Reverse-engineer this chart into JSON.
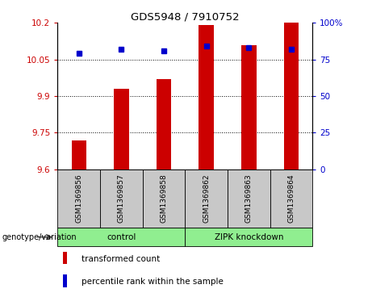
{
  "title": "GDS5948 / 7910752",
  "samples": [
    "GSM1369856",
    "GSM1369857",
    "GSM1369858",
    "GSM1369862",
    "GSM1369863",
    "GSM1369864"
  ],
  "red_values": [
    9.72,
    9.93,
    9.97,
    10.19,
    10.11,
    10.2
  ],
  "blue_values": [
    79,
    82,
    81,
    84,
    83,
    82
  ],
  "ylim_left": [
    9.6,
    10.2
  ],
  "ylim_right": [
    0,
    100
  ],
  "yticks_left": [
    9.6,
    9.75,
    9.9,
    10.05,
    10.2
  ],
  "yticks_right": [
    0,
    25,
    50,
    75,
    100
  ],
  "ytick_labels_left": [
    "9.6",
    "9.75",
    "9.9",
    "10.05",
    "10.2"
  ],
  "ytick_labels_right": [
    "0",
    "25",
    "50",
    "75",
    "100%"
  ],
  "grid_lines": [
    9.75,
    9.9,
    10.05
  ],
  "bar_color": "#cc0000",
  "dot_color": "#0000cc",
  "bar_width": 0.35,
  "legend_items": [
    {
      "label": "transformed count",
      "color": "#cc0000"
    },
    {
      "label": "percentile rank within the sample",
      "color": "#0000cc"
    }
  ],
  "bottom_bar_bg": "#c8c8c8",
  "group_bg": "#90ee90",
  "group_label": "genotype/variation",
  "groups": [
    {
      "label": "control",
      "start": 0,
      "end": 2
    },
    {
      "label": "ZIPK knockdown",
      "start": 3,
      "end": 5
    }
  ]
}
